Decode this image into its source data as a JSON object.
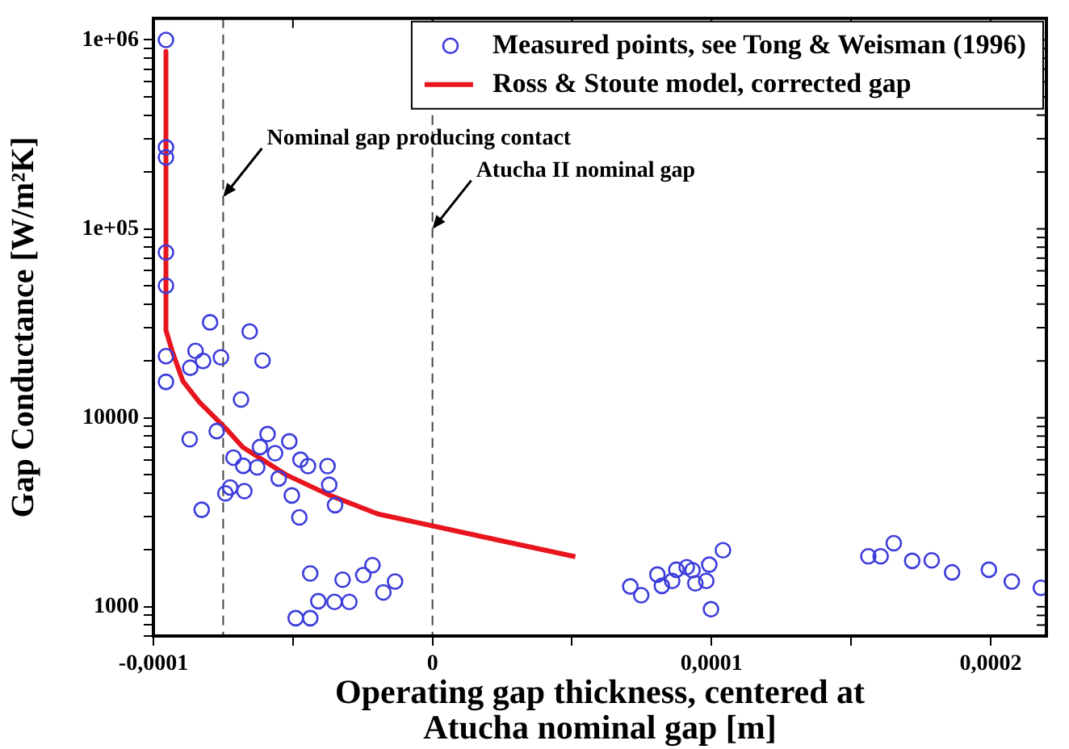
{
  "chart_data": {
    "type": "scatter",
    "xlabel": "Operating gap thickness, centered at Atucha nominal gap [m]",
    "ylabel": "Gap Conductance [W/m²K]",
    "log": "y",
    "grid": false,
    "legend": "top right",
    "xlim": [
      -0.0001,
      0.00022
    ],
    "xticks": [
      {
        "value": -0.0001,
        "label": "-0,0001"
      },
      {
        "value": -5e-05,
        "label": null
      },
      0,
      {
        "value": 5e-05,
        "label": null
      },
      {
        "value": 0.0001,
        "label": "0,0001"
      },
      {
        "value": 0.00015,
        "label": null
      },
      {
        "value": 0.0002,
        "label": "0,0002"
      }
    ],
    "ylim": [
      700,
      1300000
    ],
    "yticks": [
      {
        "value": 700,
        "label": null
      },
      {
        "value": 800,
        "label": null
      },
      {
        "value": 900,
        "label": null
      },
      1000,
      {
        "value": 2000,
        "label": null
      },
      {
        "value": 3000,
        "label": null
      },
      {
        "value": 4000,
        "label": null
      },
      {
        "value": 5000,
        "label": null
      },
      {
        "value": 6000,
        "label": null
      },
      {
        "value": 7000,
        "label": null
      },
      {
        "value": 8000,
        "label": null
      },
      {
        "value": 9000,
        "label": null
      },
      10000,
      {
        "value": 20000,
        "label": null
      },
      {
        "value": 30000,
        "label": null
      },
      {
        "value": 40000,
        "label": null
      },
      {
        "value": 50000,
        "label": null
      },
      {
        "value": 60000,
        "label": null
      },
      {
        "value": 70000,
        "label": null
      },
      {
        "value": 80000,
        "label": null
      },
      {
        "value": 90000,
        "label": null
      },
      {
        "value": 100000,
        "label": "1e+05"
      },
      {
        "value": 200000,
        "label": null
      },
      {
        "value": 300000,
        "label": null
      },
      {
        "value": 400000,
        "label": null
      },
      {
        "value": 500000,
        "label": null
      },
      {
        "value": 600000,
        "label": null
      },
      {
        "value": 700000,
        "label": null
      },
      {
        "value": 800000,
        "label": null
      },
      {
        "value": 900000,
        "label": null
      },
      {
        "value": 1000000,
        "label": "1e+06"
      }
    ],
    "series": [
      {
        "name": "Measured points, see Tong & Weisman (1996)",
        "type": "scatter",
        "marker": "circle",
        "color": "#3c3cdc",
        "x": [
          -9.55e-05,
          -9.55e-05,
          -9.55e-05,
          -9.55e-05,
          -9.55e-05,
          -7.97e-05,
          -6.55e-05,
          -9.55e-05,
          -8.49e-05,
          -8.68e-05,
          -8.22e-05,
          -7.58e-05,
          -6.09e-05,
          -9.55e-05,
          -6.86e-05,
          -8.7e-05,
          -7.73e-05,
          -5.91e-05,
          -5.13e-05,
          -6.18e-05,
          -5.64e-05,
          -7.13e-05,
          -4.73e-05,
          -4.46e-05,
          -3.76e-05,
          -6.78e-05,
          -6.28e-05,
          -5.51e-05,
          -3.7e-05,
          -7.25e-05,
          -7.42e-05,
          -6.74e-05,
          -5.04e-05,
          -3.49e-05,
          -4.77e-05,
          -8.27e-05,
          -4.38e-05,
          -2.15e-05,
          -2.48e-05,
          -3.22e-05,
          -1.34e-05,
          -1.76e-05,
          -4.09e-05,
          -3.51e-05,
          -2.98e-05,
          -4.9e-05,
          -4.38e-05,
          7.09e-05,
          7.48e-05,
          8.06e-05,
          8.22e-05,
          8.59e-05,
          8.74e-05,
          9.11e-05,
          9.32e-05,
          9.42e-05,
          9.81e-05,
          9.92e-05,
          9.98e-05,
          0.0001041,
          0.0001562,
          0.0001606,
          0.0001653,
          0.0001719,
          0.0001789,
          0.0001862,
          0.0001994,
          0.0002076,
          0.000218
        ],
        "values": [
          1000000,
          270000,
          239000,
          75000,
          50000,
          32000,
          28600,
          21200,
          22600,
          18400,
          20000,
          20900,
          20100,
          15500,
          12500,
          7700,
          8500,
          8200,
          7500,
          7000,
          6500,
          6150,
          6000,
          5550,
          5550,
          5570,
          5470,
          4770,
          4420,
          4280,
          3980,
          4090,
          3880,
          3450,
          2970,
          3260,
          1500,
          1660,
          1470,
          1390,
          1360,
          1190,
          1070,
          1060,
          1060,
          870,
          870,
          1280,
          1150,
          1480,
          1290,
          1370,
          1570,
          1620,
          1560,
          1330,
          1370,
          1670,
          970,
          1990,
          1850,
          1850,
          2170,
          1750,
          1760,
          1520,
          1570,
          1360,
          1260
        ]
      },
      {
        "name": "Ross & Stoute model, corrected gap",
        "type": "line",
        "marker": "none",
        "line_style": "solid",
        "color": "#e8141e",
        "x": [
          -9.55e-05,
          -9.55e-05,
          -9.32e-05,
          -8.94e-05,
          -8.35e-05,
          -7.38e-05,
          -6.8e-05,
          -5.25e-05,
          -3.7e-05,
          -1.96e-05,
          0,
          2.5e-05,
          5.12e-05
        ],
        "values": [
          870000,
          29000,
          22400,
          15600,
          12100,
          8700,
          7000,
          5000,
          3900,
          3100,
          2680,
          2230,
          1840
        ]
      }
    ],
    "ref_lines": [
      {
        "axis": "x",
        "value": -7.5e-05,
        "color": "#444444",
        "line_style": "dashed"
      },
      {
        "axis": "x",
        "value": 0,
        "color": "#444444",
        "line_style": "dashed"
      }
    ],
    "annotations": [
      {
        "text": "Nominal gap producing contact",
        "x": -7.5e-05,
        "y": 148000
      },
      {
        "text": "Atucha II nominal gap",
        "x": 0,
        "y": 100000
      }
    ]
  }
}
